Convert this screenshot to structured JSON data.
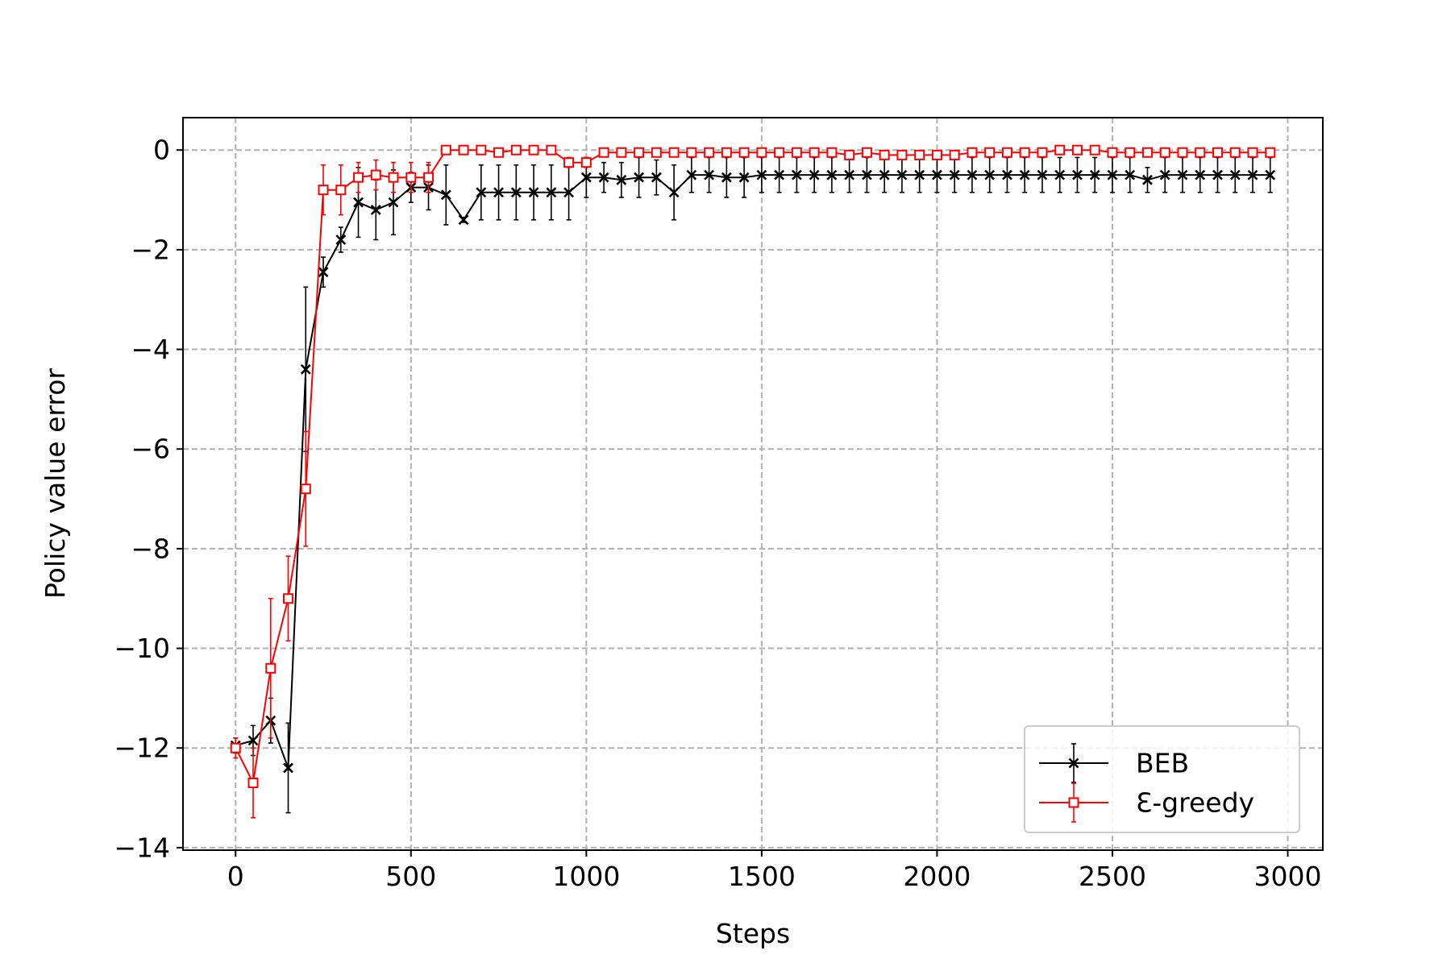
{
  "chart_data": {
    "type": "line",
    "title": "",
    "xlabel": "Steps",
    "ylabel": "Policy value error",
    "xlim": [
      -150,
      3100
    ],
    "ylim": [
      -14.05,
      0.65
    ],
    "xticks": [
      0,
      500,
      1000,
      1500,
      2000,
      2500,
      3000
    ],
    "xtick_labels": [
      "0",
      "500",
      "1000",
      "1500",
      "2000",
      "2500",
      "3000"
    ],
    "yticks": [
      0,
      -2,
      -4,
      -6,
      -8,
      -10,
      -12,
      -14
    ],
    "ytick_labels": [
      "0",
      "−2",
      "−4",
      "−6",
      "−8",
      "−10",
      "−12",
      "−14"
    ],
    "grid": true,
    "legend_position": "lower right",
    "x": [
      0,
      50,
      100,
      150,
      200,
      250,
      300,
      350,
      400,
      450,
      500,
      550,
      600,
      650,
      700,
      750,
      800,
      850,
      900,
      950,
      1000,
      1050,
      1100,
      1150,
      1200,
      1250,
      1300,
      1350,
      1400,
      1450,
      1500,
      1550,
      1600,
      1650,
      1700,
      1750,
      1800,
      1850,
      1900,
      1950,
      2000,
      2050,
      2100,
      2150,
      2200,
      2250,
      2300,
      2350,
      2400,
      2450,
      2500,
      2550,
      2600,
      2650,
      2700,
      2750,
      2800,
      2850,
      2900,
      2950
    ],
    "series": [
      {
        "name": "BEB",
        "color": "#000000",
        "marker": "x",
        "values": [
          -11.95,
          -11.85,
          -11.45,
          -12.4,
          -4.4,
          -2.45,
          -1.8,
          -1.05,
          -1.2,
          -1.05,
          -0.75,
          -0.75,
          -0.9,
          -1.4,
          -0.85,
          -0.85,
          -0.85,
          -0.85,
          -0.85,
          -0.85,
          -0.55,
          -0.55,
          -0.6,
          -0.55,
          -0.55,
          -0.85,
          -0.5,
          -0.5,
          -0.55,
          -0.55,
          -0.5,
          -0.5,
          -0.5,
          -0.5,
          -0.5,
          -0.5,
          -0.5,
          -0.5,
          -0.5,
          -0.5,
          -0.5,
          -0.5,
          -0.5,
          -0.5,
          -0.5,
          -0.5,
          -0.5,
          -0.5,
          -0.5,
          -0.5,
          -0.5,
          -0.5,
          -0.6,
          -0.5,
          -0.5,
          -0.5,
          -0.5,
          -0.5,
          -0.5,
          -0.5
        ],
        "errors": [
          0.15,
          0.3,
          0.45,
          0.9,
          1.65,
          0.3,
          0.25,
          0.7,
          0.6,
          0.65,
          0.3,
          0.45,
          0.6,
          0.05,
          0.55,
          0.55,
          0.55,
          0.55,
          0.55,
          0.55,
          0.4,
          0.3,
          0.35,
          0.4,
          0.35,
          0.55,
          0.35,
          0.35,
          0.4,
          0.4,
          0.35,
          0.35,
          0.35,
          0.35,
          0.35,
          0.35,
          0.35,
          0.35,
          0.35,
          0.35,
          0.35,
          0.35,
          0.35,
          0.35,
          0.35,
          0.35,
          0.35,
          0.35,
          0.35,
          0.35,
          0.35,
          0.35,
          0.25,
          0.35,
          0.35,
          0.35,
          0.35,
          0.35,
          0.35,
          0.35
        ]
      },
      {
        "name": "Ɛ-greedy",
        "color": "#ff0000",
        "marker": "square",
        "values": [
          -12.0,
          -12.7,
          -10.4,
          -9.0,
          -6.8,
          -0.8,
          -0.8,
          -0.55,
          -0.5,
          -0.55,
          -0.55,
          -0.55,
          0.0,
          0.0,
          0.0,
          -0.05,
          0.0,
          0.0,
          0.0,
          -0.25,
          -0.25,
          -0.05,
          -0.05,
          -0.05,
          -0.05,
          -0.05,
          -0.05,
          -0.05,
          -0.05,
          -0.05,
          -0.05,
          -0.05,
          -0.05,
          -0.05,
          -0.05,
          -0.1,
          -0.05,
          -0.1,
          -0.1,
          -0.1,
          -0.1,
          -0.1,
          -0.05,
          -0.05,
          -0.05,
          -0.05,
          -0.05,
          0.0,
          0.0,
          0.0,
          -0.05,
          -0.05,
          -0.05,
          -0.05,
          -0.05,
          -0.05,
          -0.05,
          -0.05,
          -0.05,
          -0.05
        ],
        "errors": [
          0.2,
          0.7,
          1.4,
          0.85,
          1.15,
          0.5,
          0.5,
          0.3,
          0.3,
          0.3,
          0.3,
          0.3,
          0.0,
          0.0,
          0.0,
          0.0,
          0.0,
          0.0,
          0.0,
          0.1,
          0.1,
          0.0,
          0.0,
          0.0,
          0.0,
          0.0,
          0.0,
          0.0,
          0.0,
          0.0,
          0.0,
          0.0,
          0.0,
          0.0,
          0.0,
          0.0,
          0.0,
          0.0,
          0.0,
          0.0,
          0.0,
          0.0,
          0.0,
          0.0,
          0.0,
          0.0,
          0.0,
          0.0,
          0.0,
          0.0,
          0.0,
          0.0,
          0.0,
          0.0,
          0.0,
          0.0,
          0.0,
          0.0,
          0.0,
          0.0
        ]
      }
    ]
  }
}
